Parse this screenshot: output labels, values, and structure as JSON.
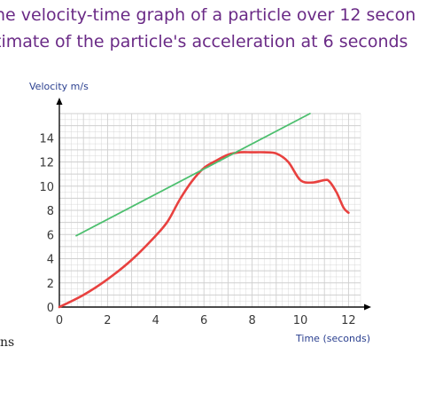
{
  "banner": {
    "line1": "he velocity-time graph of a particle over 12 secon",
    "line2": "timate of the particle's acceleration at 6 seconds"
  },
  "stray_text": "ns",
  "colors": {
    "banner_text": "#6a2a86",
    "curve": "#e8413f",
    "tangent": "#4cbf6e",
    "grid": "#cfcfcf",
    "axis_title": "#2a3f8f"
  },
  "chart_data": {
    "type": "line",
    "xlabel": "Time (seconds)",
    "ylabel": "Velocity m/s",
    "xlim": [
      0,
      12.5
    ],
    "ylim": [
      0,
      16
    ],
    "x_ticks": [
      0,
      2,
      4,
      6,
      8,
      10,
      12
    ],
    "y_ticks": [
      0,
      2,
      4,
      6,
      8,
      10,
      12,
      14
    ],
    "grid": true,
    "series": [
      {
        "role": "curve",
        "x": [
          0,
          1,
          2,
          3,
          4,
          4.5,
          5,
          5.5,
          6,
          6.5,
          7,
          7.5,
          8,
          8.5,
          9,
          9.5,
          10,
          10.5,
          11,
          11.2,
          11.5,
          11.8,
          12
        ],
        "y": [
          0,
          1,
          2.3,
          3.9,
          5.9,
          7.1,
          8.9,
          10.4,
          11.5,
          12.1,
          12.6,
          12.8,
          12.8,
          12.8,
          12.7,
          12.0,
          10.5,
          10.3,
          10.5,
          10.4,
          9.5,
          8.2,
          7.8
        ]
      },
      {
        "role": "tangent",
        "x": [
          0.7,
          10.4
        ],
        "y": [
          5.9,
          16
        ]
      }
    ]
  }
}
